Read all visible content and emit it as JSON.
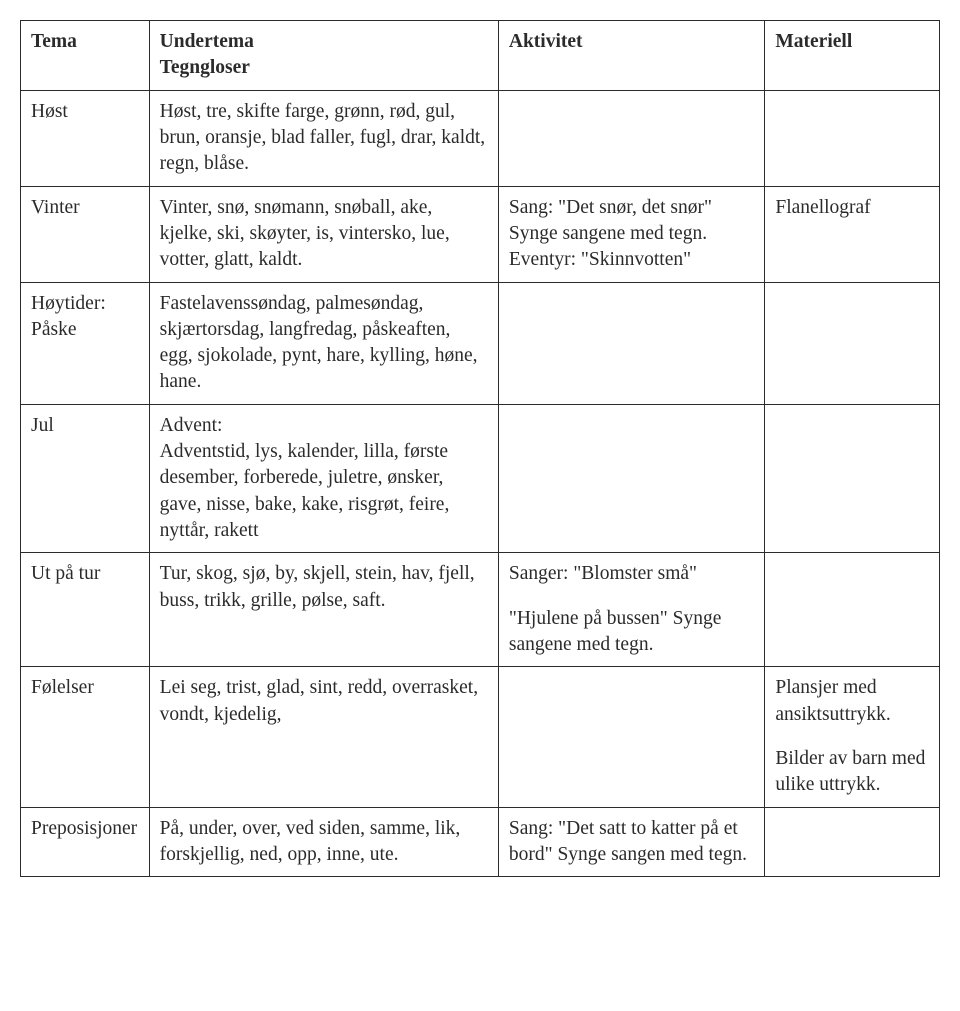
{
  "headers": {
    "tema": "Tema",
    "undertema_line1": "Undertema",
    "undertema_line2": "Tegngloser",
    "aktivitet": "Aktivitet",
    "materiell": "Materiell"
  },
  "rows": [
    {
      "tema": "Høst",
      "undertema": "Høst, tre, skifte farge, grønn, rød, gul, brun, oransje, blad faller, fugl, drar, kaldt, regn, blåse.",
      "aktivitet": "",
      "materiell": ""
    },
    {
      "tema": "Vinter",
      "undertema": "Vinter, snø, snømann, snøball, ake, kjelke, ski, skøyter, is, vintersko, lue, votter, glatt, kaldt.",
      "aktivitet": "Sang: \"Det snør, det snør\" Synge sangene med tegn. Eventyr: \"Skinnvotten\"",
      "materiell": "Flanellograf"
    },
    {
      "tema": "Høytider: Påske",
      "undertema": "Fastelavenssøndag, palmesøndag, skjærtorsdag, langfredag, påskeaften, egg, sjokolade, pynt, hare, kylling, høne, hane.",
      "aktivitet": "",
      "materiell": ""
    },
    {
      "tema": "Jul",
      "undertema": "",
      "undertema_title": "Advent:",
      "undertema_body": "Adventstid, lys, kalender, lilla, første desember, forberede, juletre, ønsker, gave, nisse, bake, kake, risgrøt, feire, nyttår, rakett",
      "aktivitet": "",
      "materiell": ""
    },
    {
      "tema": "Ut på tur",
      "undertema": "Tur, skog, sjø, by, skjell, stein, hav, fjell, buss, trikk, grille, pølse, saft.",
      "aktivitet_p1": "Sanger: \"Blomster små\"",
      "aktivitet_p2": "\"Hjulene på bussen\" Synge sangene med tegn.",
      "materiell": ""
    },
    {
      "tema": "Følelser",
      "undertema": "Lei seg, trist, glad, sint, redd, overrasket, vondt, kjedelig,",
      "aktivitet": "",
      "materiell_p1": "Plansjer med ansiktsuttrykk.",
      "materiell_p2": "Bilder av barn med ulike uttrykk."
    },
    {
      "tema": "Preposisjoner",
      "undertema": "På, under, over, ved siden, samme, lik, forskjellig, ned, opp, inne, ute.",
      "aktivitet": "Sang: \"Det satt to katter på et bord\" Synge sangen med tegn.",
      "materiell": ""
    }
  ]
}
